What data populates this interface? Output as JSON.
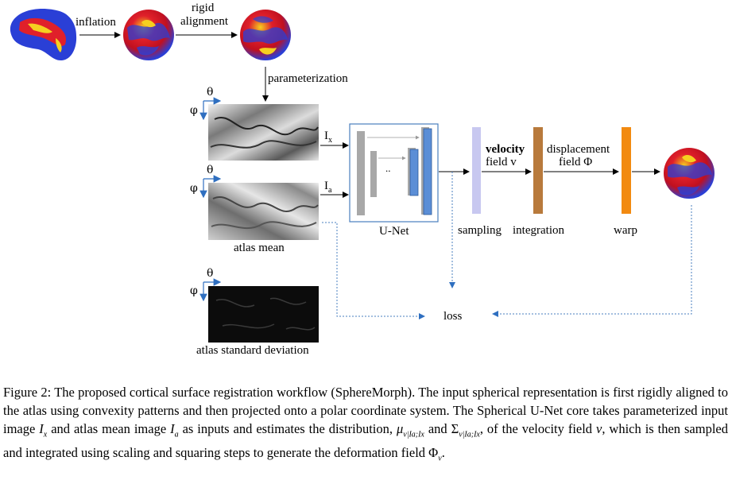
{
  "labels": {
    "inflation": "inflation",
    "rigid": "rigid",
    "alignment": "alignment",
    "parameterization": "parameterization",
    "ix": "I",
    "ix_sub": "x",
    "ia": "I",
    "ia_sub": "a",
    "unet": "U-Net",
    "dots": "..",
    "velocity": "velocity",
    "field_v": "field v",
    "displacement": "displacement",
    "field_phi": "field Φ",
    "sampling": "sampling",
    "integration": "integration",
    "warp": "warp",
    "loss": "loss",
    "atlas_mean": "atlas mean",
    "atlas_std": "atlas standard deviation",
    "theta": "θ",
    "phi": "φ"
  },
  "caption": {
    "figure_label": "Figure 2:",
    "text_1": "The proposed cortical surface registration workflow (SphereMorph). The input spherical representation is first rigidly aligned to the atlas using convexity patterns and then projected onto a polar coordinate system. The Spherical U-Net core takes parameterized input image",
    "text_2": "and atlas mean image",
    "text_3": "as inputs and estimates the distribution,",
    "text_4": "and",
    "text_5": ", of the velocity field",
    "text_6": ", which is then sampled and integrated using scaling and squaring steps to generate the deformation field",
    "sym_ix": "I",
    "sym_ix_sub": "x",
    "sym_ia": "I",
    "sym_ia_sub": "a",
    "sym_mu": "μ",
    "sym_mu_sub": "v|Ia;Ix",
    "sym_sigma": "Σ",
    "sym_sigma_sub": "v|Ia;Ix",
    "sym_v": "v",
    "sym_phi": "Φ",
    "sym_phi_sub": "v",
    "end": "."
  },
  "colors": {
    "brain_blue": "#2a3fd6",
    "brain_red": "#e0202a",
    "brain_yellow": "#f5d020",
    "axis_blue": "#2f6fc0",
    "unet_gray": "#a8a8a8",
    "unet_blue": "#5b8ed6",
    "unet_border": "#4a7fbf",
    "sampling_bar": "#c8c8f0",
    "integration_bar": "#b87a3c",
    "warp_bar": "#f28a10",
    "loss_arrow": "#4a7fbf"
  }
}
